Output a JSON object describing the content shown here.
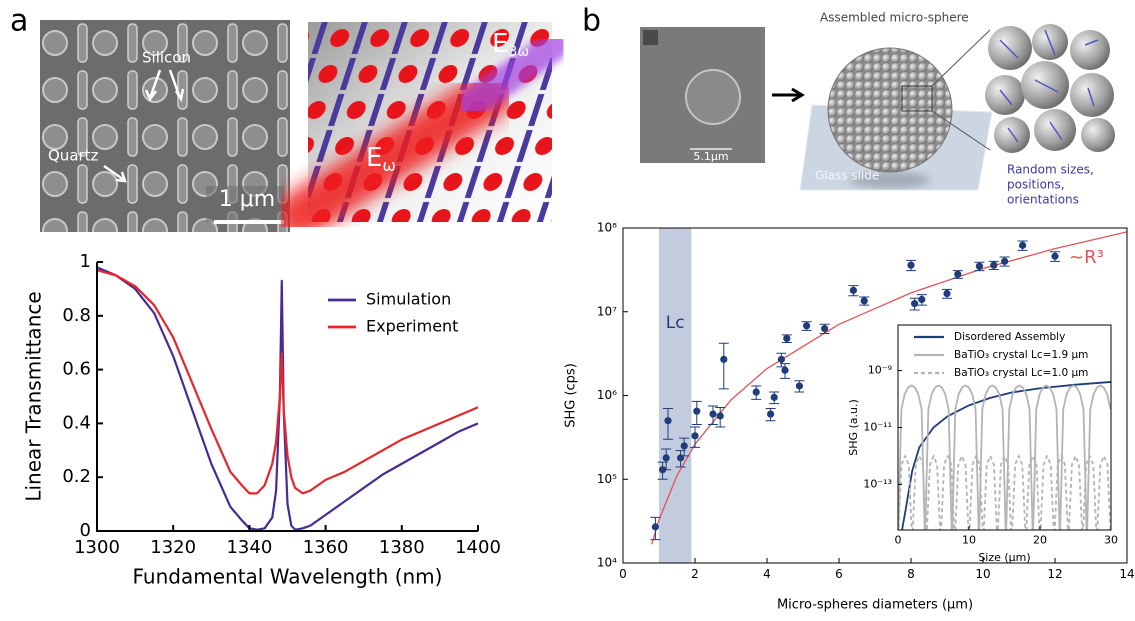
{
  "figure": {
    "panel_labels": [
      "a",
      "b"
    ],
    "sem_labels": [
      "Silicon",
      "Quartz"
    ],
    "scale_bar": "1 μm",
    "field_labels": [
      {
        "symbol": "E",
        "sub": "ω"
      },
      {
        "symbol": "E",
        "sub": "3ω"
      }
    ],
    "sem_scale": "5.1μm",
    "sphere_label": "Assembled micro-sphere",
    "slide_label": "Glass slide",
    "cluster_note": [
      "Random sizes,",
      "positions,",
      "orientations"
    ]
  },
  "chart_data": [
    {
      "type": "line",
      "x_label": "Fundamental Wavelength (nm)",
      "y_label": "Linear Transmittance",
      "x": [
        1300,
        1305,
        1310,
        1315,
        1320,
        1325,
        1330,
        1335,
        1338,
        1340,
        1342,
        1344,
        1346,
        1347,
        1348,
        1348.5,
        1349,
        1350,
        1351,
        1352,
        1354,
        1356,
        1358,
        1360,
        1365,
        1370,
        1375,
        1380,
        1385,
        1390,
        1395,
        1400
      ],
      "series": [
        {
          "name": "Simulation",
          "color": "#4a2a96",
          "values": [
            0.98,
            0.95,
            0.9,
            0.81,
            0.65,
            0.45,
            0.25,
            0.09,
            0.04,
            0.01,
            0.005,
            0.01,
            0.05,
            0.15,
            0.5,
            0.93,
            0.45,
            0.1,
            0.02,
            0.005,
            0.01,
            0.02,
            0.04,
            0.06,
            0.11,
            0.16,
            0.21,
            0.25,
            0.29,
            0.33,
            0.37,
            0.4
          ]
        },
        {
          "name": "Experiment",
          "color": "#e8262a",
          "values": [
            0.97,
            0.95,
            0.91,
            0.84,
            0.72,
            0.55,
            0.38,
            0.22,
            0.17,
            0.14,
            0.14,
            0.17,
            0.25,
            0.33,
            0.5,
            0.66,
            0.45,
            0.28,
            0.2,
            0.16,
            0.14,
            0.15,
            0.17,
            0.19,
            0.22,
            0.26,
            0.3,
            0.34,
            0.37,
            0.4,
            0.43,
            0.46
          ]
        }
      ],
      "xlim": [
        1300,
        1400
      ],
      "xticks": [
        1300,
        1320,
        1340,
        1360,
        1380,
        1400
      ],
      "ylim": [
        0,
        1
      ],
      "yticks": [
        0,
        0.2,
        0.4,
        0.6,
        0.8,
        1
      ],
      "legend": "upper right"
    },
    {
      "type": "scatter",
      "x_label": "Micro-spheres diameters (μm)",
      "y_label": "SHG (cps)",
      "xlim": [
        0,
        14
      ],
      "xticks": [
        0,
        2,
        4,
        6,
        8,
        10,
        12,
        14
      ],
      "ylim": [
        10000,
        100000000
      ],
      "ylog": true,
      "yticks": [
        {
          "value": 10000,
          "label": "10⁴"
        },
        {
          "value": 100000,
          "label": "10⁵"
        },
        {
          "value": 1000000,
          "label": "10⁶"
        },
        {
          "value": 10000000,
          "label": "10⁷"
        },
        {
          "value": 100000000,
          "label": "10⁸"
        }
      ],
      "band": {
        "x": [
          1,
          1.9
        ],
        "label": "Lc",
        "color": "#b9c3d8"
      },
      "points": {
        "color": "#1f3d7a",
        "x": [
          0.9,
          1.1,
          1.2,
          1.25,
          1.6,
          1.7,
          2.0,
          2.05,
          2.5,
          2.7,
          2.8,
          3.7,
          4.1,
          4.2,
          4.4,
          4.5,
          4.55,
          4.9,
          5.1,
          5.6,
          6.4,
          6.7,
          8.0,
          8.1,
          8.3,
          9.0,
          9.3,
          9.9,
          10.3,
          10.6,
          11.1,
          12.0
        ],
        "values": [
          27000,
          130000,
          180000,
          500000,
          180000,
          250000,
          330000,
          650000,
          600000,
          570000,
          2700000,
          1100000,
          600000,
          950000,
          2700000,
          2000000,
          4800000,
          1300000,
          6800000,
          6300000,
          18000000,
          13500000,
          36000000,
          12500000,
          14000000,
          16500000,
          28000000,
          35000000,
          36000000,
          40000000,
          62000000,
          46000000
        ],
        "errors": [
          8000,
          30000,
          50000,
          200000,
          40000,
          60000,
          90000,
          200000,
          150000,
          150000,
          1500000,
          200000,
          100000,
          150000,
          500000,
          400000,
          500000,
          200000,
          800000,
          800000,
          2500000,
          1500000,
          5000000,
          2000000,
          2000000,
          2000000,
          3000000,
          4000000,
          4000000,
          5000000,
          8000000,
          6000000
        ]
      },
      "series": [
        {
          "color": "#e05555",
          "x": [
            0.8,
            1,
            1.5,
            2,
            3,
            4,
            6,
            8,
            10,
            12,
            14
          ],
          "values": [
            16800,
            32800,
            110700,
            262400,
            885600,
            2099200,
            7084800,
            16793600,
            32800000,
            56678400,
            90003200
          ]
        }
      ],
      "fit_label": "~R³"
    },
    {
      "type": "line",
      "x_label": "Size (μm)",
      "y_label": "SHG (a.u.)",
      "xlim": [
        0,
        30
      ],
      "xticks": [
        0,
        10,
        20,
        30
      ],
      "ylim": [
        2.5e-15,
        4e-08
      ],
      "ylog": true,
      "yticks": [
        {
          "value": 1e-13,
          "label": "10⁻¹³"
        },
        {
          "value": 1e-11,
          "label": "10⁻¹¹"
        },
        {
          "value": 1e-09,
          "label": "10⁻⁹"
        }
      ],
      "legend": "upper left",
      "series": [
        {
          "name": "Disordered Assembly",
          "color": "#1f3d7a",
          "x": [
            0.5,
            1,
            2,
            3,
            5,
            7,
            10,
            13,
            16,
            20,
            25,
            30
          ],
          "values": [
            2e-15,
            1e-14,
            3e-13,
            2e-12,
            1e-11,
            2.5e-11,
            6e-11,
            1.1e-10,
            1.7e-10,
            2.4e-10,
            3.2e-10,
            4e-10
          ]
        },
        {
          "name": "BaTiO₃ crystal Lc=1.9 μm",
          "color": "#b4b4b4",
          "x": [
            0,
            0.475,
            0.95,
            1.425,
            1.9,
            2.375,
            2.85,
            3.325,
            3.8,
            4.275,
            4.75,
            5.225,
            5.7,
            6.175,
            6.65,
            7.125,
            7.6,
            8.075,
            8.55,
            9.025,
            9.5,
            9.975,
            10.45,
            10.925,
            11.4,
            11.875,
            12.35,
            12.825,
            13.3,
            13.775,
            14.25,
            14.725,
            15.2,
            15.675,
            16.15,
            16.625,
            17.1,
            17.575,
            18.05,
            18.525,
            19,
            19.475,
            19.95,
            20.425,
            20.9,
            21.375,
            21.85,
            22.325,
            22.8,
            23.275,
            23.75,
            24.225,
            24.7,
            25.175,
            25.65,
            26.125,
            26.6,
            27.075,
            27.55,
            28.025,
            28.5,
            28.975,
            29.45,
            29.925
          ],
          "values": [
            1e-15,
            4.4e-11,
            1.5e-10,
            2.56e-10,
            3e-10,
            2.56e-10,
            1.5e-10,
            4.4e-11,
            1e-15,
            4.4e-11,
            1.5e-10,
            2.56e-10,
            3e-10,
            2.56e-10,
            1.5e-10,
            4.4e-11,
            1e-15,
            4.4e-11,
            1.5e-10,
            2.56e-10,
            3e-10,
            2.56e-10,
            1.5e-10,
            4.4e-11,
            1e-15,
            4.4e-11,
            1.5e-10,
            2.56e-10,
            3e-10,
            2.56e-10,
            1.5e-10,
            4.4e-11,
            1e-15,
            4.4e-11,
            1.5e-10,
            2.56e-10,
            3e-10,
            2.56e-10,
            1.5e-10,
            4.4e-11,
            1e-15,
            4.4e-11,
            1.5e-10,
            2.56e-10,
            3e-10,
            2.56e-10,
            1.5e-10,
            4.4e-11,
            1e-15,
            4.4e-11,
            1.5e-10,
            2.56e-10,
            3e-10,
            2.56e-10,
            1.5e-10,
            4.4e-11,
            1e-15,
            4.4e-11,
            1.5e-10,
            2.56e-10,
            3e-10,
            2.56e-10,
            1.5e-10,
            4.4e-11
          ]
        },
        {
          "name": "BaTiO₃ crystal Lc=1.0 μm",
          "color": "#b4b4b4",
          "dashed": true,
          "x": [
            0,
            0.5,
            1,
            1.5,
            2,
            2.5,
            3,
            3.5,
            4,
            4.5,
            5,
            5.5,
            6,
            6.5,
            7,
            7.5,
            8,
            8.5,
            9,
            9.5,
            10,
            10.5,
            11,
            11.5,
            12,
            12.5,
            13,
            13.5,
            14,
            14.5,
            15,
            15.5,
            16,
            16.5,
            17,
            17.5,
            18,
            18.5,
            19,
            19.5,
            20,
            20.5,
            21,
            21.5,
            22,
            22.5,
            23,
            23.5,
            24,
            24.5,
            25,
            25.5,
            26,
            26.5,
            27,
            27.5,
            28,
            28.5,
            29,
            29.5,
            30
          ],
          "values": [
            1e-15,
            5e-13,
            1e-12,
            5e-13,
            1e-15,
            5e-13,
            1e-12,
            5e-13,
            1e-15,
            5e-13,
            1e-12,
            5e-13,
            1e-15,
            5e-13,
            1e-12,
            5e-13,
            1e-15,
            5e-13,
            1e-12,
            5e-13,
            1e-15,
            5e-13,
            1e-12,
            5e-13,
            1e-15,
            5e-13,
            1e-12,
            5e-13,
            1e-15,
            5e-13,
            1e-12,
            5e-13,
            1e-15,
            5e-13,
            1e-12,
            5e-13,
            1e-15,
            5e-13,
            1e-12,
            5e-13,
            1e-15,
            5e-13,
            1e-12,
            5e-13,
            1e-15,
            5e-13,
            1e-12,
            5e-13,
            1e-15,
            5e-13,
            1e-12,
            5e-13,
            1e-15,
            5e-13,
            1e-12,
            5e-13,
            1e-15,
            5e-13,
            1e-12,
            5e-13,
            1e-15
          ]
        }
      ]
    }
  ]
}
